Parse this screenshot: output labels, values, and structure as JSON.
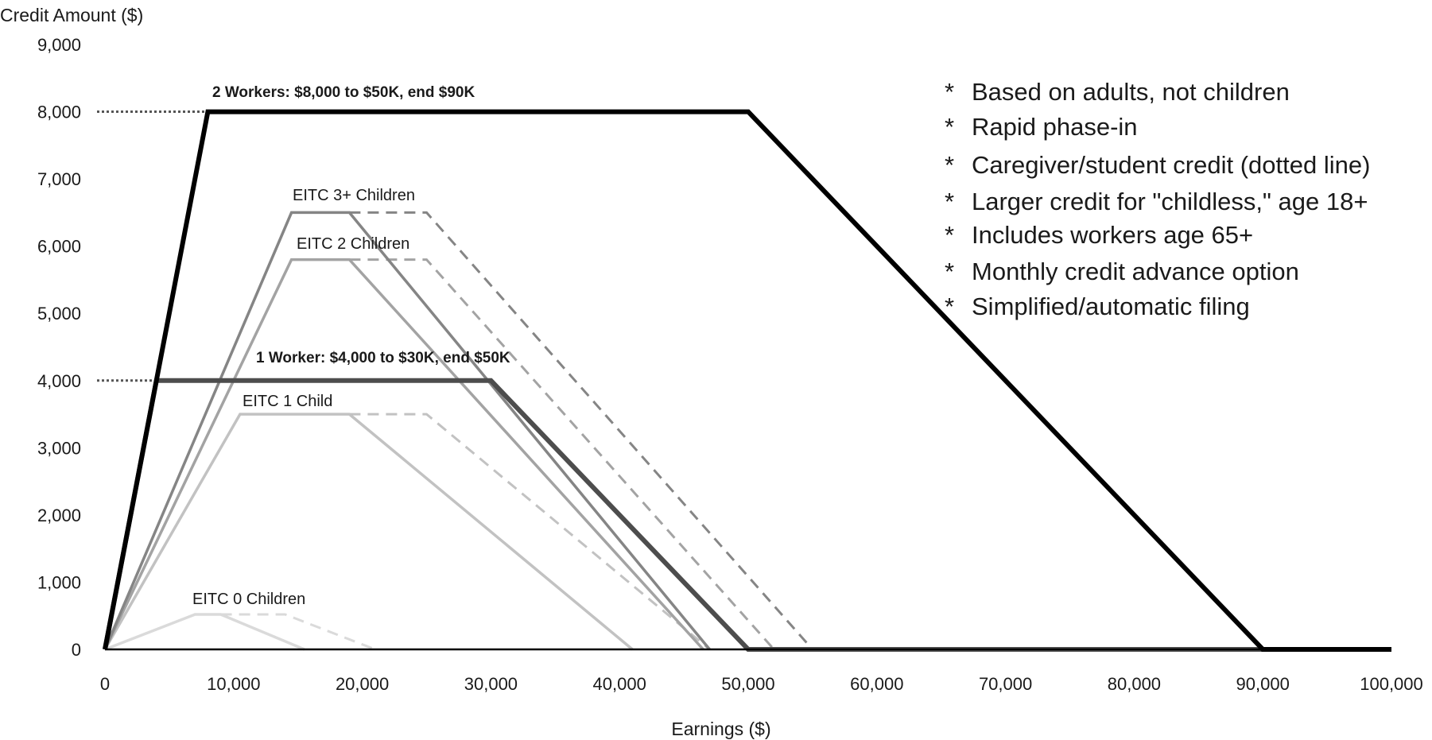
{
  "chart_data": {
    "type": "line",
    "xlabel": "Earnings ($)",
    "ylabel": "Credit Amount ($)",
    "xlim": [
      0,
      100000
    ],
    "ylim": [
      0,
      9000
    ],
    "x_ticks": [
      "0",
      "10,000",
      "20,000",
      "30,000",
      "40,000",
      "50,000",
      "60,000",
      "70,000",
      "80,000",
      "90,000",
      "100,000"
    ],
    "y_ticks": [
      "0",
      "1,000",
      "2,000",
      "3,000",
      "4,000",
      "5,000",
      "6,000",
      "7,000",
      "8,000",
      "9,000"
    ],
    "grid": false,
    "series": [
      {
        "name": "2 Workers: $8,000 to $50K, end $90K",
        "color": "#000000",
        "style": "solid-thick",
        "points": [
          [
            0,
            0
          ],
          [
            8000,
            8000
          ],
          [
            50000,
            8000
          ],
          [
            90000,
            0
          ],
          [
            100000,
            0
          ]
        ],
        "caregiver_credit": 8000
      },
      {
        "name": "1 Worker: $4,000 to $30K, end $50K",
        "color": "#4d4d4d",
        "style": "solid-thick",
        "points": [
          [
            0,
            0
          ],
          [
            4000,
            4000
          ],
          [
            30000,
            4000
          ],
          [
            50000,
            0
          ],
          [
            100000,
            0
          ]
        ],
        "caregiver_credit": 4000
      },
      {
        "name": "EITC 3+ Children",
        "color": "#858585",
        "style": "solid",
        "points": [
          [
            0,
            0
          ],
          [
            14500,
            6500
          ],
          [
            19000,
            6500
          ],
          [
            47000,
            0
          ]
        ],
        "dashed_points": [
          [
            19000,
            6500
          ],
          [
            25000,
            6500
          ],
          [
            55000,
            0
          ]
        ]
      },
      {
        "name": "EITC 2 Children",
        "color": "#a3a3a3",
        "style": "solid",
        "points": [
          [
            0,
            0
          ],
          [
            14500,
            5800
          ],
          [
            19000,
            5800
          ],
          [
            46500,
            0
          ]
        ],
        "dashed_points": [
          [
            19000,
            5800
          ],
          [
            25000,
            5800
          ],
          [
            52000,
            0
          ]
        ]
      },
      {
        "name": "EITC 1 Child",
        "color": "#c2c2c2",
        "style": "solid",
        "points": [
          [
            0,
            0
          ],
          [
            10500,
            3500
          ],
          [
            19000,
            3500
          ],
          [
            41000,
            0
          ]
        ],
        "dashed_points": [
          [
            19000,
            3500
          ],
          [
            25000,
            3500
          ],
          [
            47000,
            0
          ]
        ]
      },
      {
        "name": "EITC 0 Children",
        "color": "#dadada",
        "style": "solid",
        "points": [
          [
            0,
            0
          ],
          [
            7000,
            520
          ],
          [
            9000,
            520
          ],
          [
            15500,
            0
          ]
        ],
        "dashed_points": [
          [
            9000,
            520
          ],
          [
            14000,
            520
          ],
          [
            21000,
            0
          ]
        ]
      }
    ],
    "notes": [
      "Based on adults, not children",
      "Rapid phase-in",
      "Caregiver/student credit (dotted line)",
      "Larger credit for \"childless,\" age 18+",
      "Includes workers age 65+",
      "Monthly credit advance option",
      "Simplified/automatic filing"
    ]
  }
}
